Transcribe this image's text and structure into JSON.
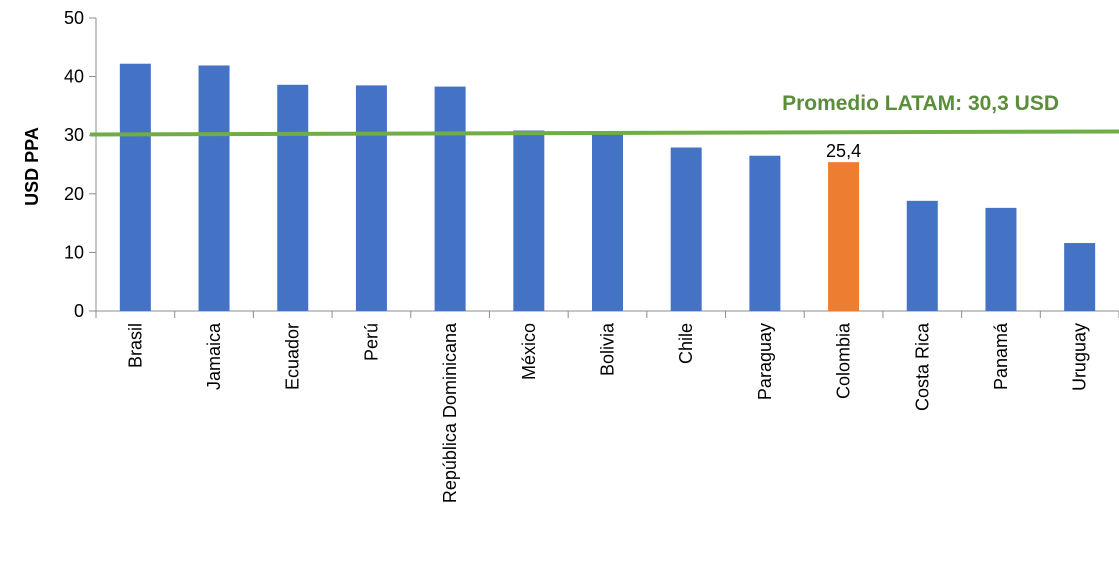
{
  "chart_data": {
    "type": "bar",
    "categories": [
      "Brasil",
      "Jamaica",
      "Ecuador",
      "Perú",
      "República Dominicana",
      "México",
      "Bolivia",
      "Chile",
      "Paraguay",
      "Colombia",
      "Costa Rica",
      "Panamá",
      "Uruguay"
    ],
    "values": [
      42.2,
      41.9,
      38.6,
      38.5,
      38.3,
      30.8,
      30.4,
      27.9,
      26.5,
      25.4,
      18.8,
      17.6,
      11.6
    ],
    "highlight_category": "Colombia",
    "data_labels": [
      {
        "category": "Colombia",
        "text": "25,4"
      }
    ],
    "ylabel": "USD PPA",
    "xlabel": "",
    "ylim": [
      0,
      50
    ],
    "yticks": [
      0,
      10,
      20,
      30,
      40,
      50
    ],
    "grid": false,
    "legend": "none",
    "reference_line": {
      "value": 30.3,
      "label": "Promedio LATAM: 30,3 USD"
    },
    "colors": {
      "bar": "#4472c4",
      "highlight": "#ed7d31",
      "reference_line": "#70ad47",
      "reference_label": "#5b8e3b",
      "axis": "#8c8c8c"
    }
  }
}
